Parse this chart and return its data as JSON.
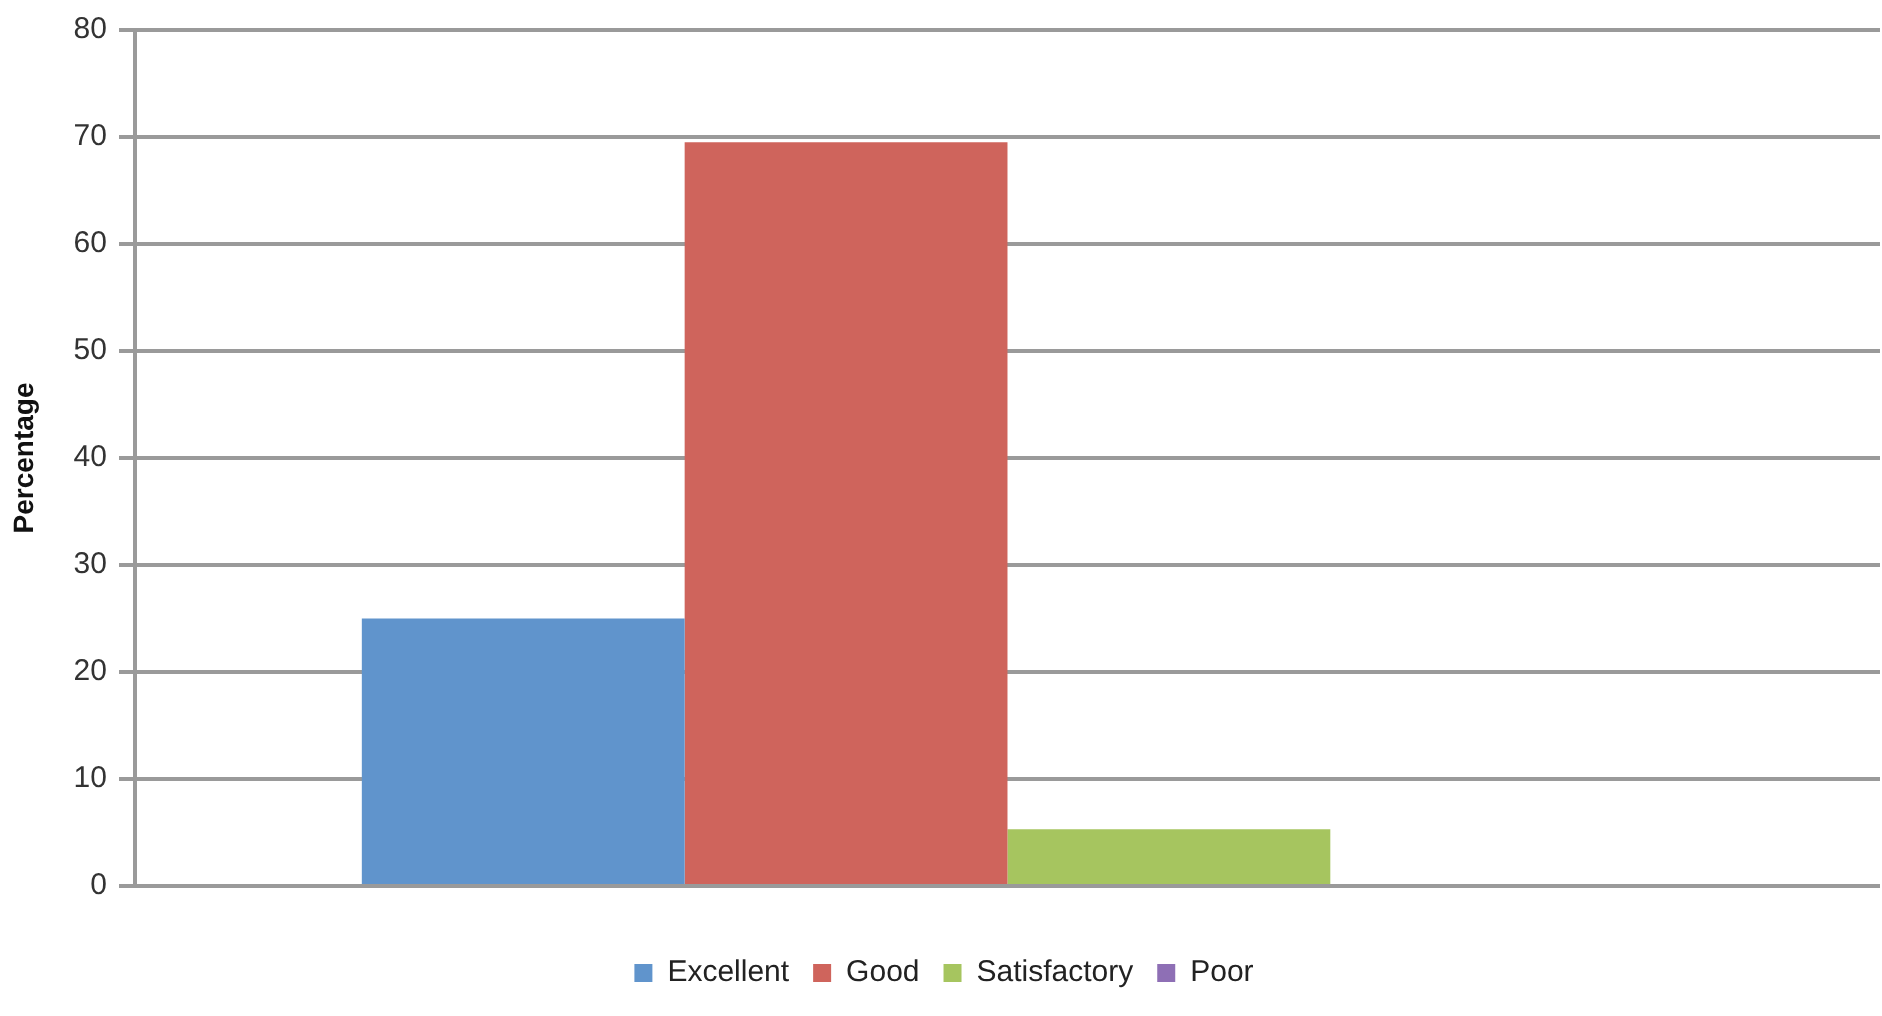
{
  "chart_data": {
    "type": "bar",
    "ylabel": "Percentage",
    "categories": [
      null
    ],
    "series": [
      {
        "name": "Excellent",
        "color": "#6094cc",
        "values": [
          25
        ]
      },
      {
        "name": "Good",
        "color": "#cf645c",
        "values": [
          69.5
        ]
      },
      {
        "name": "Satisfactory",
        "color": "#a6c55f",
        "values": [
          5.3
        ]
      },
      {
        "name": "Poor",
        "color": "#8e6fb5",
        "values": [
          0
        ]
      }
    ],
    "ylim": [
      0,
      80
    ],
    "yticks": [
      0,
      10,
      20,
      30,
      40,
      50,
      60,
      70,
      80
    ],
    "grid": "y",
    "legend": "bottom"
  }
}
